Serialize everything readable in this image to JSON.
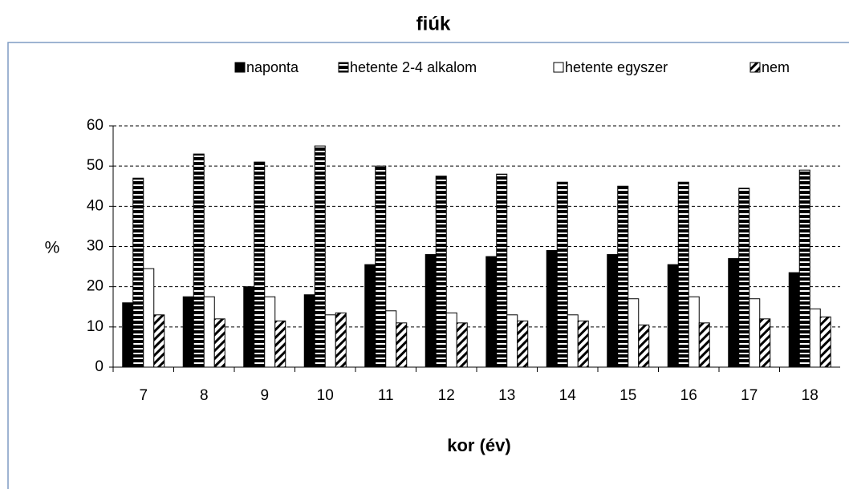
{
  "chart_data": {
    "type": "bar",
    "title": "fiúk",
    "xlabel": "kor (év)",
    "ylabel": "%",
    "categories": [
      "7",
      "8",
      "9",
      "10",
      "11",
      "12",
      "13",
      "14",
      "15",
      "16",
      "17",
      "18"
    ],
    "series": [
      {
        "name": "naponta",
        "color": "#000000",
        "pattern": "solid",
        "values": [
          16,
          17.5,
          20,
          18,
          25.5,
          28,
          27.5,
          29,
          28,
          25.5,
          27,
          23.5
        ]
      },
      {
        "name": "hetente 2-4 alkalom",
        "color": "#000000",
        "pattern": "horizontal",
        "values": [
          47,
          53,
          51,
          55,
          50,
          47.5,
          48,
          46,
          45,
          46,
          44.5,
          49
        ]
      },
      {
        "name": "hetente egyszer",
        "color": "#000000",
        "pattern": "none",
        "values": [
          24.5,
          17.5,
          17.5,
          13,
          14,
          13.5,
          13,
          13,
          17,
          17.5,
          17,
          14.5
        ]
      },
      {
        "name": "nem",
        "color": "#000000",
        "pattern": "diagonal",
        "values": [
          13,
          12,
          11.5,
          13.5,
          11,
          11,
          11.5,
          11.5,
          10.5,
          11,
          12,
          12.5
        ]
      }
    ],
    "ylim": [
      0,
      60
    ],
    "yticks": [
      0,
      10,
      20,
      30,
      40,
      50,
      60
    ],
    "grid": true,
    "legend": "top"
  }
}
